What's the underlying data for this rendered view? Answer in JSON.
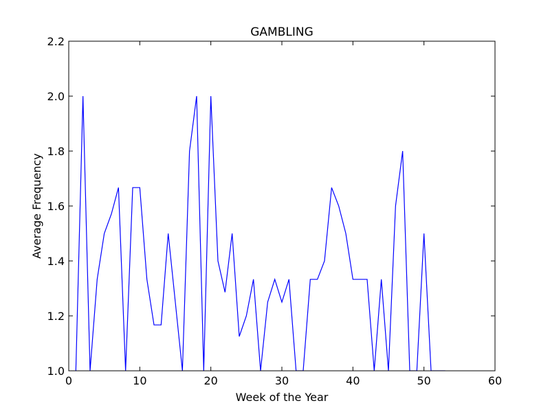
{
  "chart_data": {
    "type": "line",
    "title": "GAMBLING",
    "xlabel": "Week of the Year",
    "ylabel": "Average Frequency",
    "xlim": [
      0,
      60
    ],
    "ylim": [
      1.0,
      2.2
    ],
    "xticks": [
      0,
      10,
      20,
      30,
      40,
      50,
      60
    ],
    "xtick_labels": [
      "0",
      "10",
      "20",
      "30",
      "40",
      "50",
      "60"
    ],
    "yticks": [
      1.0,
      1.2,
      1.4,
      1.6,
      1.8,
      2.0,
      2.2
    ],
    "ytick_labels": [
      "1.0",
      "1.2",
      "1.4",
      "1.6",
      "1.8",
      "2.0",
      "2.2"
    ],
    "grid": false,
    "series": [
      {
        "color": "#0000ff",
        "x": [
          1,
          2,
          3,
          4,
          5,
          6,
          7,
          8,
          9,
          10,
          11,
          12,
          13,
          14,
          15,
          16,
          17,
          18,
          19,
          20,
          21,
          22,
          23,
          24,
          25,
          26,
          27,
          28,
          29,
          30,
          31,
          32,
          33,
          34,
          35,
          36,
          37,
          38,
          39,
          40,
          41,
          42,
          43,
          44,
          45,
          46,
          47,
          48,
          49,
          50,
          51,
          52,
          53
        ],
        "y": [
          1.0,
          2.0,
          1.0,
          1.333,
          1.5,
          1.571,
          1.667,
          1.0,
          1.667,
          1.667,
          1.333,
          1.167,
          1.167,
          1.5,
          1.25,
          1.0,
          1.8,
          2.0,
          1.0,
          2.0,
          1.4,
          1.286,
          1.5,
          1.125,
          1.2,
          1.333,
          1.0,
          1.25,
          1.333,
          1.25,
          1.333,
          1.0,
          1.0,
          1.333,
          1.333,
          1.4,
          1.667,
          1.6,
          1.5,
          1.333,
          1.333,
          1.333,
          1.0,
          1.333,
          1.0,
          1.6,
          1.8,
          1.0,
          1.0,
          1.5,
          1.0,
          1.0,
          1.0
        ]
      }
    ]
  }
}
